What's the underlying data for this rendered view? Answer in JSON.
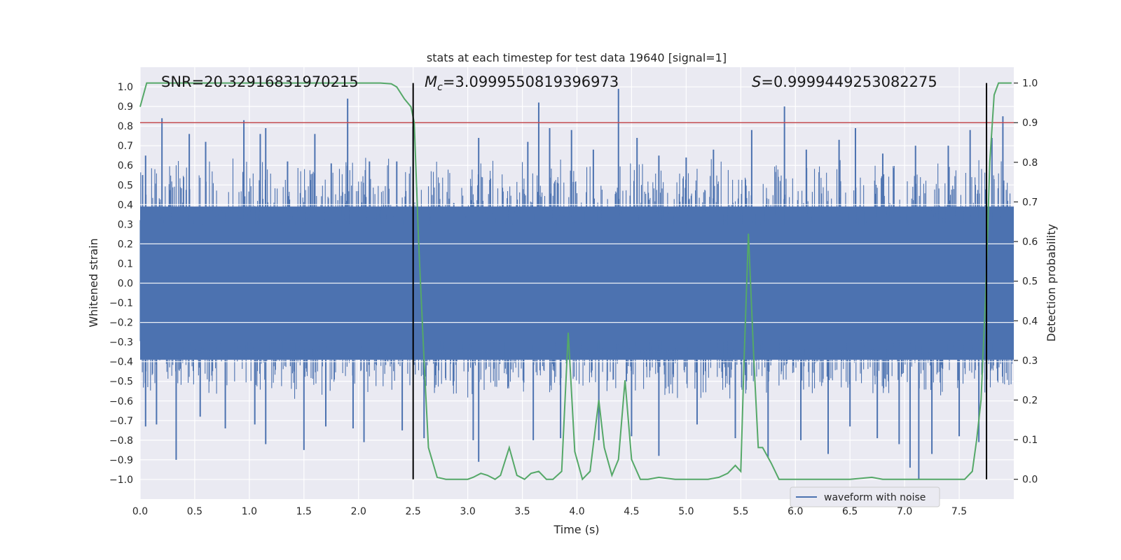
{
  "chart_data": {
    "type": "line",
    "title": "stats at each timestep for test data 19640 [signal=1]",
    "xlabel": "Time (s)",
    "ylabel": "Whitened strain",
    "ylabel_right": "Detection probability",
    "xlim": [
      0,
      8
    ],
    "ylim": [
      -1.1,
      1.1
    ],
    "ylim_right": [
      -0.05,
      1.04
    ],
    "x_ticks": [
      "0.0",
      "0.5",
      "1.0",
      "1.5",
      "2.0",
      "2.5",
      "3.0",
      "3.5",
      "4.0",
      "4.5",
      "5.0",
      "5.5",
      "6.0",
      "6.5",
      "7.0",
      "7.5"
    ],
    "x_tick_values": [
      0,
      0.5,
      1,
      1.5,
      2,
      2.5,
      3,
      3.5,
      4,
      4.5,
      5,
      5.5,
      6,
      6.5,
      7,
      7.5
    ],
    "y_ticks": [
      "1.0",
      "0.9",
      "0.8",
      "0.7",
      "0.6",
      "0.5",
      "0.4",
      "0.3",
      "0.2",
      "0.1",
      "0.0",
      "−0.1",
      "−0.2",
      "−0.3",
      "−0.4",
      "−0.5",
      "−0.6",
      "−0.7",
      "−0.8",
      "−0.9",
      "−1.0"
    ],
    "y_tick_values": [
      1.0,
      0.9,
      0.8,
      0.7,
      0.6,
      0.5,
      0.4,
      0.3,
      0.2,
      0.1,
      0.0,
      -0.1,
      -0.2,
      -0.3,
      -0.4,
      -0.5,
      -0.6,
      -0.7,
      -0.8,
      -0.9,
      -1.0
    ],
    "y_right_ticks": [
      "1.0",
      "0.9",
      "0.8",
      "0.7",
      "0.6",
      "0.5",
      "0.4",
      "0.3",
      "0.2",
      "0.1",
      "0.0"
    ],
    "y_right_tick_values": [
      1.0,
      0.9,
      0.8,
      0.7,
      0.6,
      0.5,
      0.4,
      0.3,
      0.2,
      0.1,
      0.0
    ],
    "grid": true,
    "legend_position": "lower-right",
    "annotations": {
      "snr": "SNR=20.32916831970215",
      "mc_symbol": "M",
      "mc_sub": "c",
      "mc_value": "=3.0999550819396973",
      "s_symbol": "S",
      "s_value": "=0.9999449253082275"
    },
    "threshold_right": 0.9,
    "vertical_markers": [
      2.5,
      7.75
    ],
    "series": [
      {
        "name": "waveform with noise",
        "color": "#4c72b0",
        "amplitude_core": 0.39,
        "spikes_up": [
          [
            0.05,
            0.65
          ],
          [
            0.2,
            0.84
          ],
          [
            0.45,
            0.76
          ],
          [
            0.6,
            0.72
          ],
          [
            0.95,
            0.83
          ],
          [
            1.1,
            0.76
          ],
          [
            1.15,
            0.79
          ],
          [
            1.35,
            0.62
          ],
          [
            1.6,
            0.76
          ],
          [
            1.75,
            0.61
          ],
          [
            1.9,
            0.94
          ],
          [
            2.1,
            0.62
          ],
          [
            2.35,
            0.62
          ],
          [
            2.5,
            0.8
          ],
          [
            3.1,
            0.74
          ],
          [
            3.55,
            0.72
          ],
          [
            3.65,
            0.92
          ],
          [
            3.75,
            0.79
          ],
          [
            3.95,
            0.78
          ],
          [
            4.15,
            0.68
          ],
          [
            4.38,
            0.99
          ],
          [
            4.55,
            0.74
          ],
          [
            4.75,
            0.65
          ],
          [
            5.0,
            0.64
          ],
          [
            5.25,
            0.68
          ],
          [
            5.6,
            0.78
          ],
          [
            5.9,
            0.9
          ],
          [
            6.1,
            0.68
          ],
          [
            6.4,
            0.73
          ],
          [
            6.55,
            0.79
          ],
          [
            6.8,
            0.66
          ],
          [
            7.1,
            0.7
          ],
          [
            7.4,
            0.7
          ],
          [
            7.6,
            0.78
          ],
          [
            7.8,
            0.74
          ],
          [
            7.9,
            0.85
          ]
        ],
        "spikes_down": [
          [
            0.05,
            -0.73
          ],
          [
            0.15,
            -0.72
          ],
          [
            0.33,
            -0.9
          ],
          [
            0.55,
            -0.68
          ],
          [
            0.78,
            -0.74
          ],
          [
            1.05,
            -0.72
          ],
          [
            1.15,
            -0.82
          ],
          [
            1.5,
            -0.85
          ],
          [
            1.7,
            -0.73
          ],
          [
            1.95,
            -0.74
          ],
          [
            2.05,
            -0.81
          ],
          [
            2.4,
            -0.75
          ],
          [
            2.6,
            -0.79
          ],
          [
            3.05,
            -0.8
          ],
          [
            3.1,
            -0.91
          ],
          [
            3.6,
            -0.8
          ],
          [
            3.85,
            -0.79
          ],
          [
            4.2,
            -0.8
          ],
          [
            4.5,
            -0.78
          ],
          [
            4.75,
            -0.88
          ],
          [
            5.1,
            -0.72
          ],
          [
            5.45,
            -0.79
          ],
          [
            5.75,
            -0.89
          ],
          [
            6.05,
            -0.8
          ],
          [
            6.3,
            -0.87
          ],
          [
            6.5,
            -0.73
          ],
          [
            6.75,
            -0.79
          ],
          [
            6.95,
            -0.82
          ],
          [
            7.05,
            -0.94
          ],
          [
            7.13,
            -1.0
          ],
          [
            7.25,
            -0.87
          ],
          [
            7.5,
            -0.78
          ],
          [
            7.68,
            -0.81
          ],
          [
            7.75,
            -0.81
          ]
        ]
      },
      {
        "name": "",
        "color": "#55a868",
        "axis": "right",
        "x": [
          0.0,
          0.06,
          0.2,
          0.4,
          0.6,
          0.8,
          1.0,
          1.2,
          1.4,
          1.6,
          1.8,
          2.0,
          2.1,
          2.2,
          2.3,
          2.35,
          2.42,
          2.48,
          2.51,
          2.55,
          2.6,
          2.64,
          2.72,
          2.8,
          2.9,
          3.0,
          3.05,
          3.12,
          3.18,
          3.25,
          3.3,
          3.38,
          3.45,
          3.52,
          3.58,
          3.65,
          3.72,
          3.78,
          3.86,
          3.92,
          3.98,
          4.05,
          4.12,
          4.2,
          4.25,
          4.32,
          4.38,
          4.44,
          4.5,
          4.58,
          4.65,
          4.75,
          4.9,
          5.05,
          5.2,
          5.3,
          5.38,
          5.45,
          5.5,
          5.53,
          5.57,
          5.62,
          5.66,
          5.7,
          5.78,
          5.85,
          5.95,
          6.1,
          6.3,
          6.5,
          6.7,
          6.8,
          6.95,
          7.1,
          7.3,
          7.45,
          7.55,
          7.62,
          7.66,
          7.7,
          7.74,
          7.78,
          7.82,
          7.86,
          7.92,
          7.98
        ],
        "y": [
          0.94,
          1.0,
          1.0,
          1.0,
          1.0,
          1.0,
          1.0,
          1.0,
          1.0,
          1.0,
          1.0,
          1.0,
          1.0,
          1.0,
          0.998,
          0.99,
          0.96,
          0.94,
          0.9,
          0.6,
          0.3,
          0.08,
          0.005,
          0.0,
          0.0,
          0.0,
          0.005,
          0.015,
          0.01,
          0.0,
          0.01,
          0.08,
          0.01,
          0.0,
          0.015,
          0.02,
          0.0,
          0.0,
          0.02,
          0.37,
          0.07,
          0.0,
          0.02,
          0.2,
          0.08,
          0.01,
          0.05,
          0.25,
          0.05,
          0.0,
          0.0,
          0.005,
          0.0,
          0.0,
          0.0,
          0.005,
          0.015,
          0.035,
          0.02,
          0.3,
          0.62,
          0.3,
          0.08,
          0.08,
          0.04,
          0.0,
          0.0,
          0.0,
          0.0,
          0.0,
          0.005,
          0.0,
          0.0,
          0.0,
          0.0,
          0.0,
          0.0,
          0.02,
          0.1,
          0.2,
          0.45,
          0.8,
          0.97,
          1.0,
          1.0,
          1.0
        ]
      }
    ]
  }
}
